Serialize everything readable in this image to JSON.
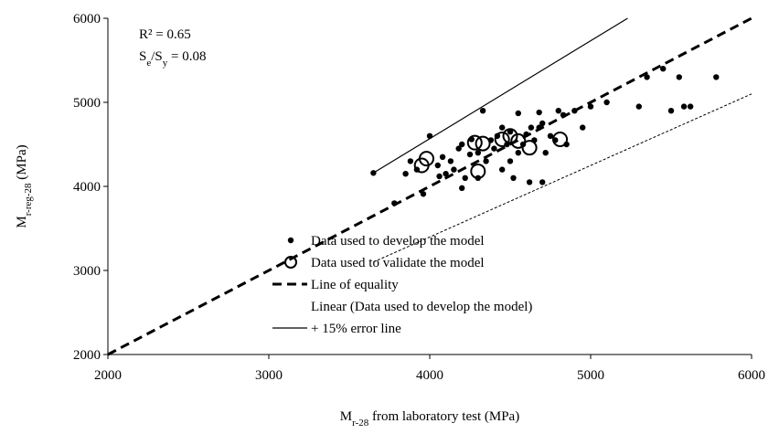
{
  "chart_data": {
    "type": "scatter",
    "xlabel": [
      "M",
      "r-28",
      " from laboratory test (MPa)"
    ],
    "ylabel": [
      "M",
      "r-reg-28",
      " (MPa)"
    ],
    "annotations": [
      [
        "R² = 0.65"
      ],
      [
        "S",
        "e",
        "/S",
        "y",
        " = 0.08"
      ]
    ],
    "xlim": [
      2000,
      6000
    ],
    "ylim": [
      2000,
      6000
    ],
    "xticks": [
      2000,
      3000,
      4000,
      5000,
      6000
    ],
    "yticks": [
      2000,
      3000,
      4000,
      5000,
      6000
    ],
    "legend_position": "lower-right",
    "series": [
      {
        "name": "Data used to develop the model",
        "style": "dot",
        "color": "#000000",
        "x": [
          3650,
          3780,
          3850,
          3880,
          3920,
          3960,
          4000,
          4050,
          4060,
          4080,
          4100,
          4130,
          4150,
          4180,
          4200,
          4200,
          4220,
          4250,
          4260,
          4300,
          4300,
          4330,
          4350,
          4380,
          4400,
          4420,
          4450,
          4450,
          4480,
          4500,
          4500,
          4520,
          4550,
          4580,
          4600,
          4620,
          4630,
          4650,
          4680,
          4700,
          4700,
          4720,
          4750,
          4780,
          4800,
          4830,
          4850,
          4900,
          4950,
          5000,
          5100,
          5300,
          5350,
          5450,
          5500,
          5550,
          5580,
          5620,
          5780,
          4550,
          4680
        ],
        "y": [
          4160,
          3800,
          4150,
          4300,
          4200,
          3910,
          4600,
          4250,
          4120,
          4350,
          4150,
          4300,
          4200,
          4450,
          4500,
          3980,
          4100,
          4380,
          4560,
          4400,
          4100,
          4900,
          4300,
          4550,
          4450,
          4600,
          4200,
          4700,
          4500,
          4650,
          4300,
          4100,
          4400,
          4500,
          4620,
          4050,
          4700,
          4550,
          4700,
          4050,
          4750,
          4400,
          4600,
          4550,
          4900,
          4850,
          4500,
          4900,
          4700,
          4950,
          5000,
          4950,
          5300,
          5400,
          4900,
          5300,
          4950,
          4950,
          5300,
          4870,
          4880
        ]
      },
      {
        "name": "Data used to validate the model",
        "style": "circle",
        "color": "#000000",
        "x": [
          3950,
          3980,
          4280,
          4300,
          4330,
          4450,
          4500,
          4550,
          4620,
          4810
        ],
        "y": [
          4250,
          4330,
          4520,
          4180,
          4510,
          4560,
          4600,
          4540,
          4460,
          4560
        ]
      },
      {
        "name": "Line of equality",
        "style": "dashed",
        "color": "#000000",
        "x": [
          2000,
          6000
        ],
        "y": [
          2000,
          6000
        ]
      },
      {
        "name": "Linear (Data used to develop the model)",
        "style": "none",
        "color": "#000000",
        "x": [],
        "y": []
      },
      {
        "name": "+ 15% error line",
        "style": "solid",
        "color": "#000000",
        "x": [
          3650,
          5230
        ],
        "y": [
          4160,
          6000
        ]
      },
      {
        "style": "dotted",
        "color": "#000000",
        "x": [
          3650,
          6000
        ],
        "y": [
          3100,
          5100
        ]
      }
    ]
  }
}
